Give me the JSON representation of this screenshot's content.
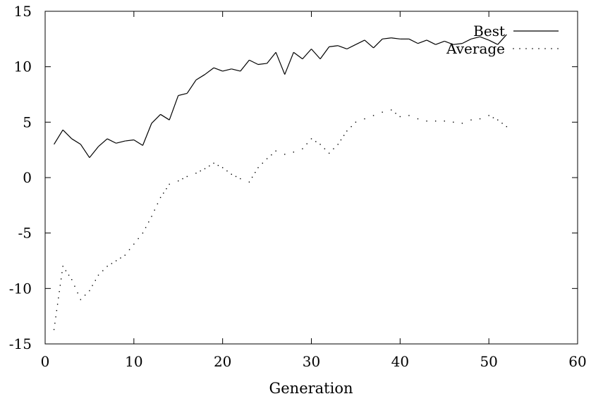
{
  "chart_data": {
    "type": "line",
    "title": "",
    "xlabel": "Generation",
    "ylabel": "",
    "xlim": [
      0,
      60
    ],
    "ylim": [
      -15,
      15
    ],
    "xticks": [
      "0",
      "10",
      "20",
      "30",
      "40",
      "50",
      "60"
    ],
    "yticks": [
      "-15",
      "-10",
      "-5",
      "0",
      "5",
      "10",
      "15"
    ],
    "grid": false,
    "legend_position": "top-right",
    "series": [
      {
        "name": "Best",
        "style": "solid",
        "color": "#000000",
        "x": [
          1,
          2,
          3,
          4,
          5,
          6,
          7,
          8,
          9,
          10,
          11,
          12,
          13,
          14,
          15,
          16,
          17,
          18,
          19,
          20,
          21,
          22,
          23,
          24,
          25,
          26,
          27,
          28,
          29,
          30,
          31,
          32,
          33,
          34,
          35,
          36,
          37,
          38,
          39,
          40,
          41,
          42,
          43,
          44,
          45,
          46,
          47,
          48,
          49,
          50,
          51,
          52
        ],
        "values": [
          3.0,
          4.3,
          3.5,
          3.0,
          1.8,
          2.8,
          3.5,
          3.1,
          3.3,
          3.4,
          2.9,
          4.9,
          5.7,
          5.2,
          7.4,
          7.6,
          8.8,
          9.3,
          9.9,
          9.6,
          9.8,
          9.6,
          10.6,
          10.2,
          10.3,
          11.3,
          9.3,
          11.3,
          10.7,
          11.6,
          10.7,
          11.8,
          11.9,
          11.6,
          12.0,
          12.4,
          11.7,
          12.5,
          12.6,
          12.5,
          12.5,
          12.1,
          12.4,
          12.0,
          12.3,
          12.0,
          12.1,
          12.5,
          12.7,
          12.4,
          12.0,
          12.9
        ]
      },
      {
        "name": "Average",
        "style": "dotted",
        "color": "#000000",
        "x": [
          1,
          2,
          3,
          4,
          5,
          6,
          7,
          8,
          9,
          10,
          11,
          12,
          13,
          14,
          15,
          16,
          17,
          18,
          19,
          20,
          21,
          22,
          23,
          24,
          25,
          26,
          27,
          28,
          29,
          30,
          31,
          32,
          33,
          34,
          35,
          36,
          37,
          38,
          39,
          40,
          41,
          42,
          43,
          44,
          45,
          46,
          47,
          48,
          49,
          50,
          51,
          52
        ],
        "values": [
          -13.7,
          -8.0,
          -9.2,
          -11.0,
          -10.2,
          -8.8,
          -8.0,
          -7.5,
          -7.0,
          -6.0,
          -5.0,
          -3.5,
          -1.8,
          -0.6,
          -0.3,
          0.1,
          0.4,
          0.8,
          1.3,
          0.9,
          0.3,
          -0.1,
          -0.4,
          0.9,
          1.7,
          2.4,
          2.1,
          2.3,
          2.6,
          3.5,
          3.0,
          2.2,
          3.0,
          4.2,
          5.0,
          5.3,
          5.6,
          5.9,
          6.1,
          5.5,
          5.6,
          5.3,
          5.1,
          5.1,
          5.1,
          5.0,
          4.9,
          5.2,
          5.3,
          5.6,
          5.2,
          4.6
        ]
      }
    ]
  }
}
